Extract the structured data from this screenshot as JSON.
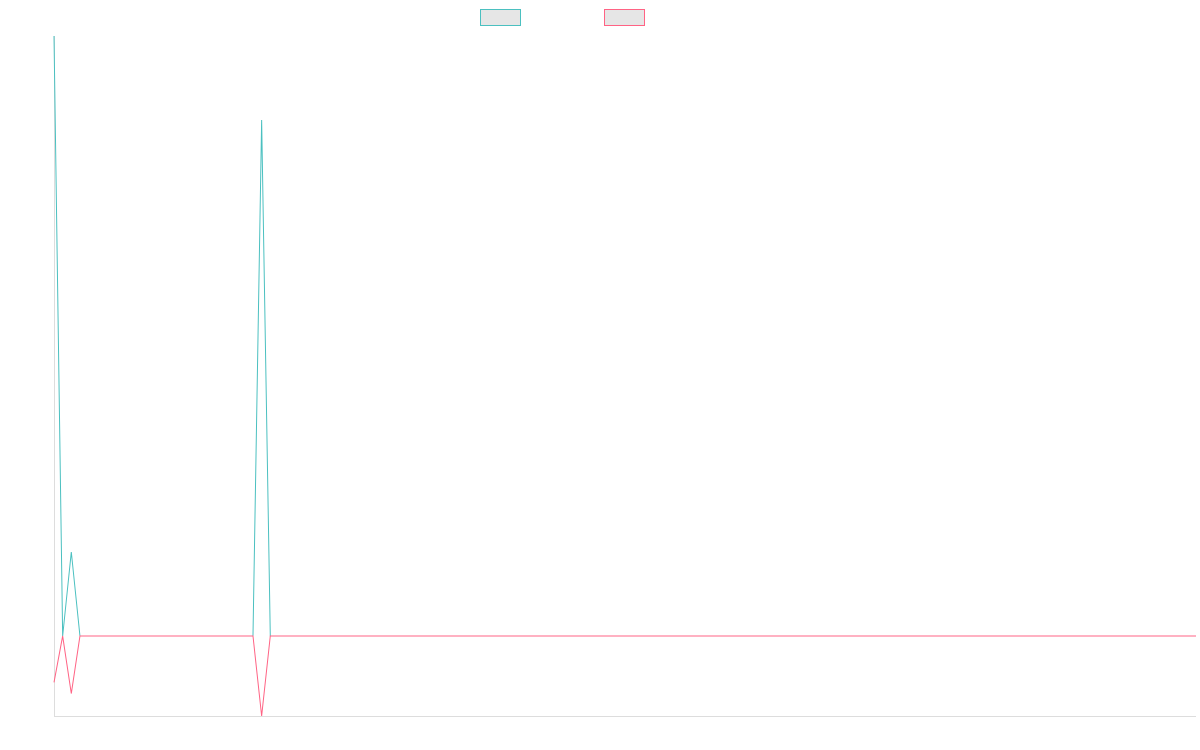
{
  "chart_data": {
    "type": "line",
    "title": "",
    "xlabel": "",
    "ylabel": "",
    "legend": "top-center",
    "grid": false,
    "x": [
      0,
      1,
      2,
      3,
      4,
      5,
      6,
      7,
      8,
      9,
      10,
      11,
      12,
      13,
      14,
      15,
      16,
      17,
      18,
      19,
      20,
      21,
      22,
      23,
      24,
      25,
      26,
      27,
      28,
      29,
      30,
      31,
      32,
      33,
      34,
      35,
      36,
      37,
      38,
      39,
      40,
      41,
      42,
      43,
      44,
      45,
      46,
      47,
      48,
      49,
      50,
      51,
      52,
      53,
      54,
      55,
      56,
      57,
      58,
      59,
      60,
      61,
      62,
      63,
      64,
      65,
      66,
      67,
      68,
      69,
      70,
      71,
      72,
      73,
      74,
      75,
      76,
      77,
      78,
      79,
      80,
      81,
      82,
      83,
      84,
      85,
      86,
      87,
      88,
      89,
      90,
      91,
      92,
      93,
      94,
      95,
      96,
      97,
      98,
      99,
      100,
      101,
      102,
      103,
      104,
      105,
      106,
      107,
      108,
      109,
      110,
      111,
      112,
      113,
      114,
      115,
      116,
      117,
      118,
      119,
      120,
      121,
      122,
      123,
      124,
      125,
      126,
      127,
      128,
      129,
      130,
      131,
      132
    ],
    "ylim": [
      -1,
      7.5
    ],
    "series": [
      {
        "name": "",
        "color": "#4bc0c0",
        "values": [
          7.5,
          0,
          1.05,
          0,
          0,
          0,
          0,
          0,
          0,
          0,
          0,
          0,
          0,
          0,
          0,
          0,
          0,
          0,
          0,
          0,
          0,
          0,
          0,
          0,
          6.45,
          0,
          0,
          0,
          0,
          0,
          0,
          0,
          0,
          0,
          0,
          0,
          0,
          0,
          0,
          0,
          0,
          0,
          0,
          0,
          0,
          0,
          0,
          0,
          0,
          0,
          0,
          0,
          0,
          0,
          0,
          0,
          0,
          0,
          0,
          0,
          0,
          0,
          0,
          0,
          0,
          0,
          0,
          0,
          0,
          0,
          0,
          0,
          0,
          0,
          0,
          0,
          0,
          0,
          0,
          0,
          0,
          0,
          0,
          0,
          0,
          0,
          0,
          0,
          0,
          0,
          0,
          0,
          0,
          0,
          0,
          0,
          0,
          0,
          0,
          0,
          0,
          0,
          0,
          0,
          0,
          0,
          0,
          0,
          0,
          0,
          0,
          0,
          0,
          0,
          0,
          0,
          0,
          0,
          0,
          0,
          0,
          0,
          0,
          0,
          0,
          0,
          0,
          0,
          0,
          0,
          0,
          0,
          0
        ]
      },
      {
        "name": "",
        "color": "#ff6384",
        "values": [
          -0.58,
          0,
          -0.72,
          0,
          0,
          0,
          0,
          0,
          0,
          0,
          0,
          0,
          0,
          0,
          0,
          0,
          0,
          0,
          0,
          0,
          0,
          0,
          0,
          0,
          -1,
          0,
          0,
          0,
          0,
          0,
          0,
          0,
          0,
          0,
          0,
          0,
          0,
          0,
          0,
          0,
          0,
          0,
          0,
          0,
          0,
          0,
          0,
          0,
          0,
          0,
          0,
          0,
          0,
          0,
          0,
          0,
          0,
          0,
          0,
          0,
          0,
          0,
          0,
          0,
          0,
          0,
          0,
          0,
          0,
          0,
          0,
          0,
          0,
          0,
          0,
          0,
          0,
          0,
          0,
          0,
          0,
          0,
          0,
          0,
          0,
          0,
          0,
          0,
          0,
          0,
          0,
          0,
          0,
          0,
          0,
          0,
          0,
          0,
          0,
          0,
          0,
          0,
          0,
          0,
          0,
          0,
          0,
          0,
          0,
          0,
          0,
          0,
          0,
          0,
          0,
          0,
          0,
          0,
          0,
          0,
          0,
          0,
          0,
          0,
          0,
          0,
          0,
          0,
          0,
          0,
          0,
          0,
          0
        ]
      }
    ]
  }
}
